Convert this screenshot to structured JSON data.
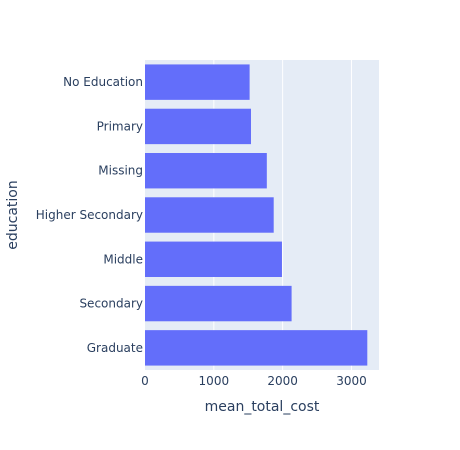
{
  "chart_data": {
    "type": "bar",
    "orientation": "horizontal",
    "categories": [
      "No Education",
      "Primary",
      "Missing",
      "Higher Secondary",
      "Middle",
      "Secondary",
      "Graduate"
    ],
    "values": [
      1520,
      1540,
      1770,
      1870,
      1990,
      2130,
      3230
    ],
    "xlabel": "mean_total_cost",
    "ylabel": "education",
    "xlim": [
      0,
      3400
    ],
    "xticks": [
      0,
      1000,
      2000,
      3000
    ],
    "xtick_labels": [
      "0",
      "1000",
      "2000",
      "3000"
    ],
    "grid": true,
    "bar_color": "#636efa",
    "plot_bg": "#e5ecf6"
  }
}
